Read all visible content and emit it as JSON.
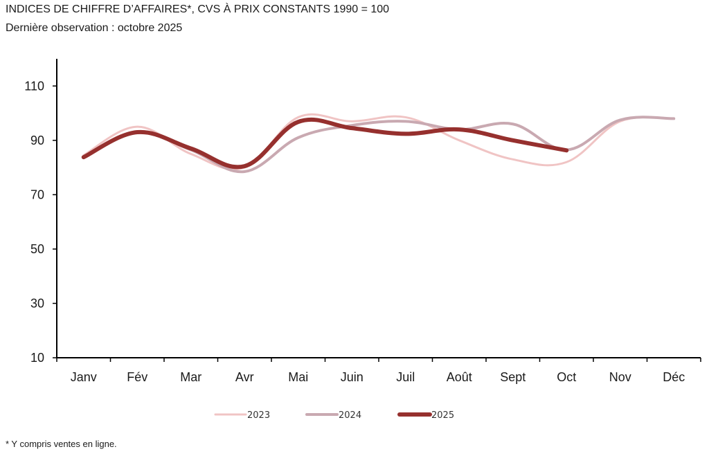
{
  "header": {
    "title": "INDICES DE CHIFFRE D’AFFAIRES*, CVS À PRIX CONSTANTS 1990 = 100",
    "subtitle": "Dernière observation : octobre 2025"
  },
  "footnote": "* Y compris ventes en ligne.",
  "chart_data": {
    "type": "line",
    "title": "INDICES DE CHIFFRE D’AFFAIRES*, CVS À PRIX CONSTANTS 1990 = 100",
    "subtitle": "Dernière observation : octobre 2025",
    "xlabel": "",
    "ylabel": "",
    "categories": [
      "Janv",
      "Fév",
      "Mar",
      "Avr",
      "Mai",
      "Juin",
      "Juil",
      "Août",
      "Sept",
      "Oct",
      "Nov",
      "Déc"
    ],
    "ylim": [
      10,
      120
    ],
    "yticks": [
      10,
      30,
      50,
      70,
      90,
      110
    ],
    "grid": false,
    "legend_position": "bottom",
    "series": [
      {
        "name": "2023",
        "color": "#f0c4c4",
        "values": [
          84.5,
          95,
          85,
          80,
          98.5,
          97,
          98.5,
          90,
          83,
          82,
          97,
          98
        ]
      },
      {
        "name": "2024",
        "color": "#c9a9b1",
        "values": [
          84,
          93,
          86.5,
          78.5,
          91,
          95.5,
          97,
          94,
          96,
          86.5,
          97.5,
          98
        ]
      },
      {
        "name": "2025",
        "color": "#96302e",
        "values": [
          83.8,
          93,
          87,
          80.5,
          96.8,
          94.5,
          92.4,
          94,
          90,
          86.3,
          null,
          null
        ]
      }
    ]
  }
}
